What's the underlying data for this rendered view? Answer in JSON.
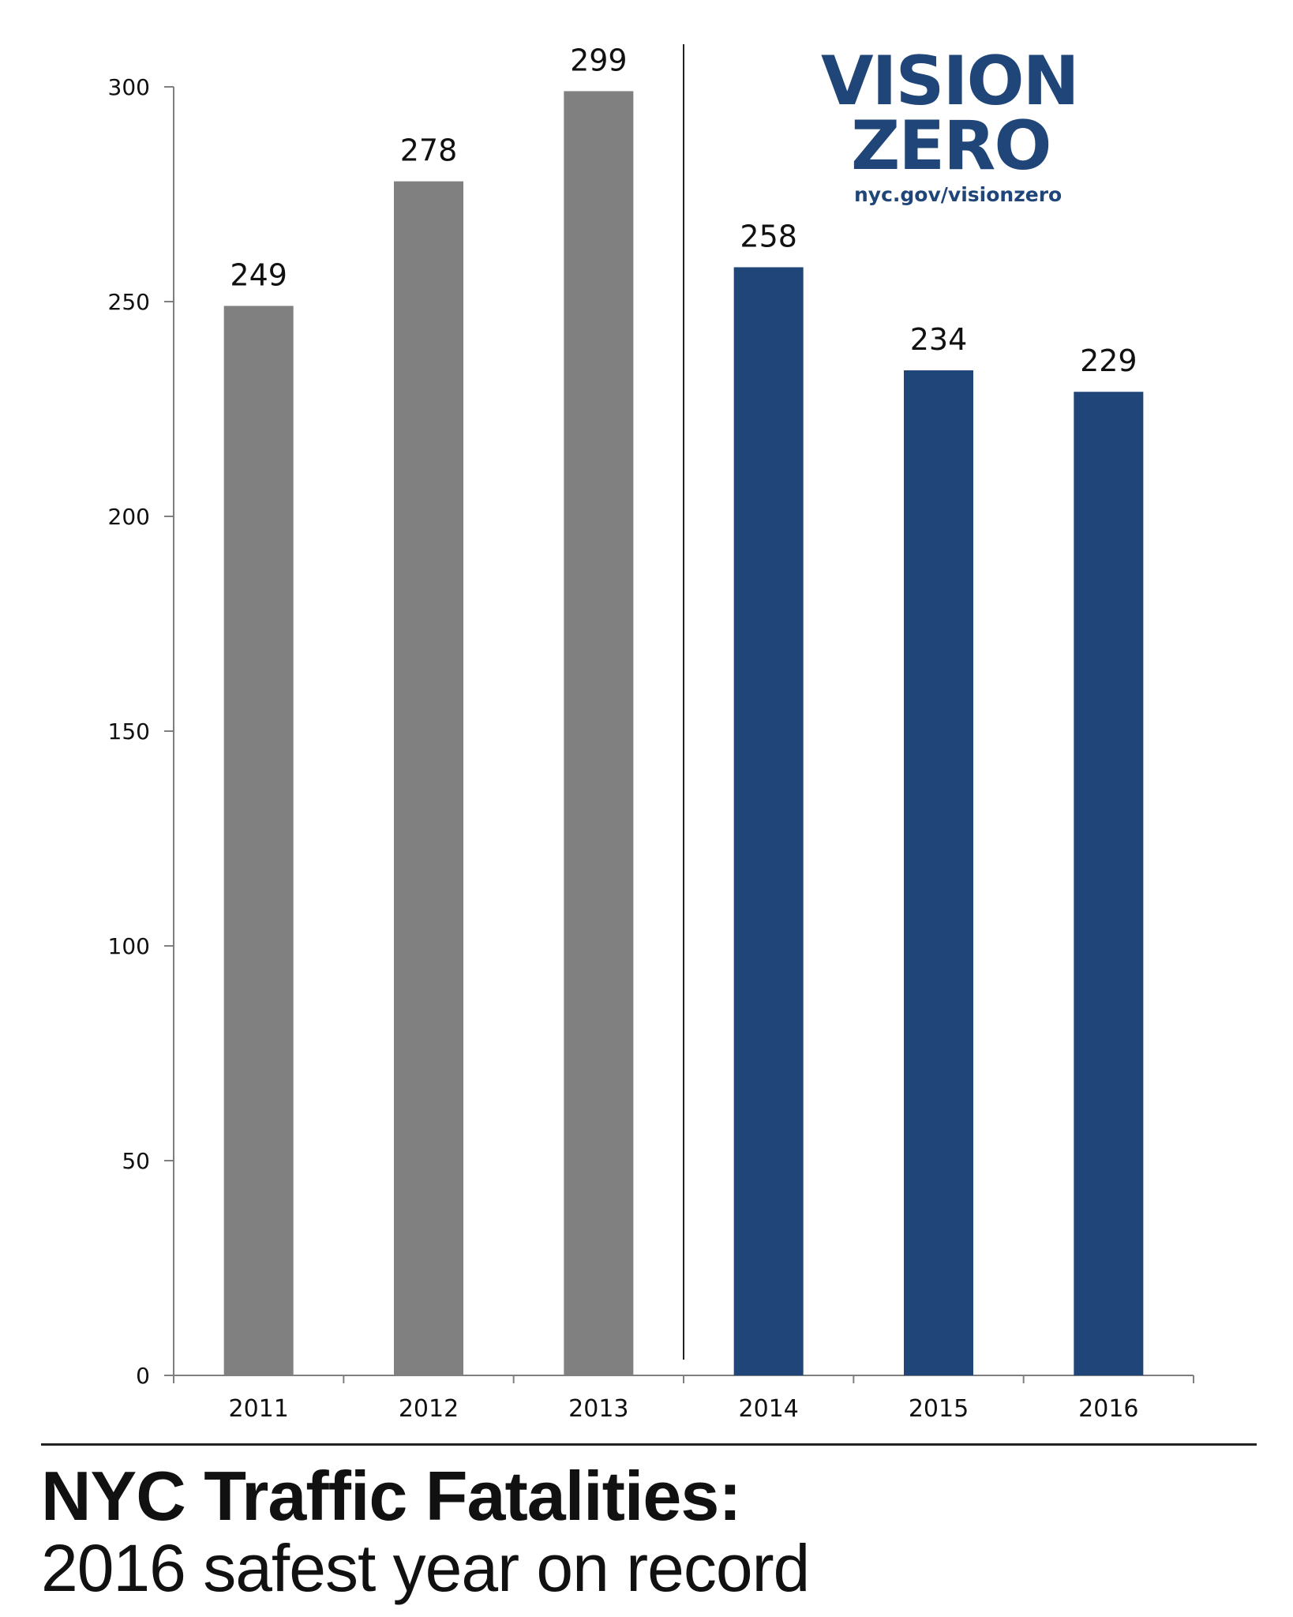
{
  "logo": {
    "line1": "VISION",
    "line2": "ZERO",
    "url": "nyc.gov/visionzero",
    "color": "#1f4579"
  },
  "heading": {
    "title": "NYC Traffic Fatalities:",
    "subtitle": "2016 safest year on record"
  },
  "chart_data": {
    "type": "bar",
    "categories": [
      "2011",
      "2012",
      "2013",
      "2014",
      "2015",
      "2016"
    ],
    "values": [
      249,
      278,
      299,
      258,
      234,
      229
    ],
    "data_labels": [
      "249",
      "278",
      "299",
      "258",
      "234",
      "229"
    ],
    "bar_colors": [
      "#808080",
      "#808080",
      "#808080",
      "#1f4579",
      "#1f4579",
      "#1f4579"
    ],
    "ylim": [
      0,
      300
    ],
    "yticks": [
      0,
      50,
      100,
      150,
      200,
      250,
      300
    ],
    "ytick_labels": [
      "0",
      "50",
      "100",
      "150",
      "200",
      "250",
      "300"
    ],
    "separator_after_category": "2013",
    "grid": false,
    "legend": "none",
    "title": "",
    "xlabel": "",
    "ylabel": ""
  }
}
